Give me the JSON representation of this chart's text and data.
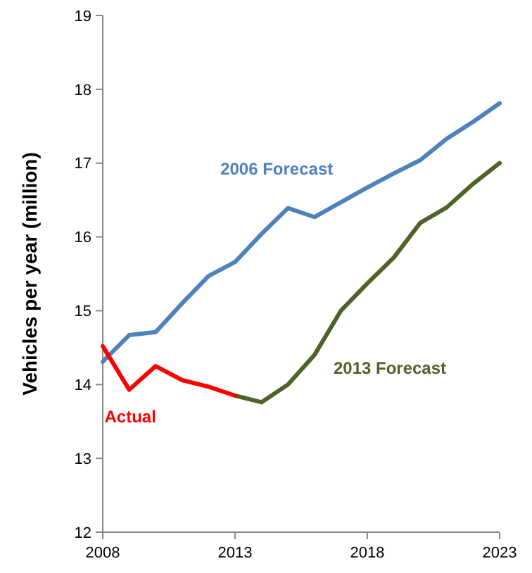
{
  "chart_data": {
    "type": "line",
    "ylabel": "Vehicles per year (million)",
    "xlim": [
      2008,
      2023
    ],
    "xticks": [
      2008,
      2013,
      2018,
      2023
    ],
    "ylim": [
      12,
      19
    ],
    "yticks": [
      12,
      13,
      14,
      15,
      16,
      17,
      18,
      19
    ],
    "grid": false,
    "legend": false,
    "series": [
      {
        "name": "2006 Forecast",
        "color": "#4f81bd",
        "x": [
          2008,
          2009,
          2010,
          2011,
          2012,
          2013,
          2014,
          2015,
          2016,
          2017,
          2018,
          2019,
          2020,
          2021,
          2022,
          2023
        ],
        "values": [
          14.31,
          14.67,
          14.71,
          15.1,
          15.47,
          15.66,
          16.04,
          16.39,
          16.27,
          16.47,
          16.67,
          16.86,
          17.04,
          17.33,
          17.56,
          17.81
        ]
      },
      {
        "name": "2013 Forecast",
        "color": "#4f6228",
        "x": [
          2013,
          2014,
          2015,
          2016,
          2017,
          2018,
          2019,
          2020,
          2021,
          2022,
          2023
        ],
        "values": [
          13.85,
          13.76,
          14.0,
          14.4,
          15.0,
          15.37,
          15.72,
          16.19,
          16.4,
          16.72,
          17.0
        ]
      },
      {
        "name": "Actual",
        "color": "#ff0000",
        "x": [
          2008,
          2009,
          2010,
          2011,
          2012,
          2013
        ],
        "values": [
          14.52,
          13.93,
          14.25,
          14.06,
          13.97,
          13.85
        ]
      }
    ]
  }
}
